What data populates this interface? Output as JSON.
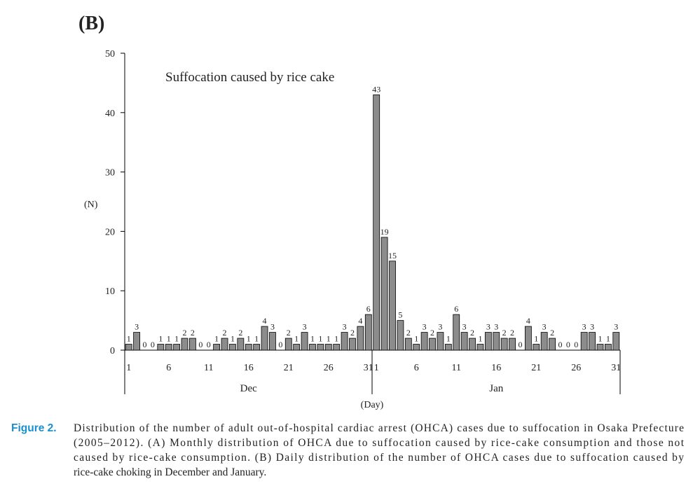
{
  "panel_label": "(B)",
  "chart_data": {
    "type": "bar",
    "annotation": "Suffocation caused by rice cake",
    "ylabel": "(N)",
    "xlabel": "(Day)",
    "groups": [
      "Dec",
      "Jan"
    ],
    "categories": [
      "1",
      null,
      null,
      null,
      null,
      "6",
      null,
      null,
      null,
      null,
      "11",
      null,
      null,
      null,
      null,
      "16",
      null,
      null,
      null,
      null,
      "21",
      null,
      null,
      null,
      null,
      "26",
      null,
      null,
      null,
      null,
      "31",
      "1",
      null,
      null,
      null,
      null,
      "6",
      null,
      null,
      null,
      null,
      "11",
      null,
      null,
      null,
      null,
      "16",
      null,
      null,
      null,
      null,
      "21",
      null,
      null,
      null,
      null,
      "26",
      null,
      null,
      null,
      null,
      "31"
    ],
    "values": [
      1,
      3,
      0,
      0,
      1,
      1,
      1,
      2,
      2,
      0,
      0,
      1,
      2,
      1,
      2,
      1,
      1,
      4,
      3,
      0,
      2,
      1,
      3,
      1,
      1,
      1,
      1,
      3,
      2,
      4,
      6,
      43,
      19,
      15,
      5,
      2,
      1,
      3,
      2,
      3,
      1,
      6,
      3,
      2,
      1,
      3,
      3,
      2,
      2,
      0,
      4,
      1,
      3,
      2,
      0,
      0,
      0,
      3,
      3,
      1,
      1,
      3
    ],
    "color": "#8c8c8c",
    "ylim": [
      0,
      50
    ],
    "yticks": [
      0,
      10,
      20,
      30,
      40,
      50
    ]
  },
  "caption": {
    "label": "Figure 2.",
    "lines": [
      "Distribution of the number of adult out-of-hospital cardiac arrest (OHCA) cases due to suffocation in Osaka Prefecture",
      "(2005–2012). (A) Monthly distribution of OHCA due to suffocation caused by rice-cake consumption and those not",
      "caused by rice-cake consumption. (B) Daily distribution of the number of OHCA cases due to suffocation caused by",
      "rice-cake choking in December and January."
    ]
  }
}
